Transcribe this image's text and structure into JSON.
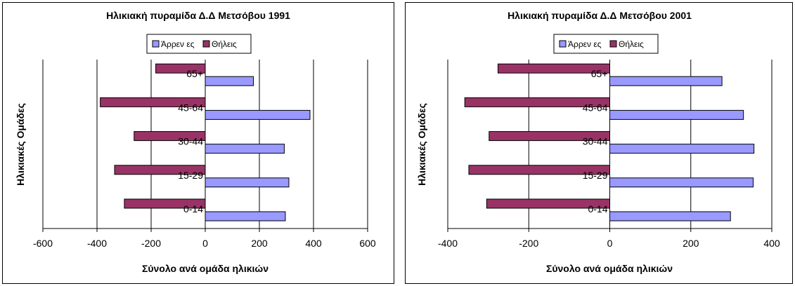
{
  "chart_data": [
    {
      "type": "bar",
      "orientation": "horizontal",
      "title": "Ηλικιακή πυραμίδα Δ.Δ Μετσόβου 1991",
      "xlabel": "Σύνολο ανά ομάδα ηλικιών",
      "ylabel": "Ηλικιακές Ομάδες",
      "categories": [
        "0-14",
        "15-29",
        "30-44",
        "45-64",
        "65+"
      ],
      "series": [
        {
          "name": "Άρρεν ες",
          "values": [
            296,
            309,
            292,
            387,
            178
          ]
        },
        {
          "name": "Θήλεις",
          "values": [
            -299,
            -335,
            -263,
            -388,
            -183
          ]
        }
      ],
      "xlim": [
        -600,
        600
      ],
      "xticks": [
        -600,
        -400,
        -200,
        0,
        200,
        400,
        600
      ],
      "xtick_labels": [
        "-600",
        "-400",
        "-200",
        "0",
        "200",
        "400",
        "600"
      ],
      "grid": "vertical major gridlines",
      "legend": "top-center",
      "colors": {
        "Άρρεν ες": "#9999ff",
        "Θήλεις": "#993366"
      }
    },
    {
      "type": "bar",
      "orientation": "horizontal",
      "title": "Ηλικιακή πυραμίδα Δ.Δ Μετσόβου 2001",
      "xlabel": "Σύνολο ανά ομάδα ηλικιών",
      "ylabel": "Ηλικιακές Ομάδες",
      "categories": [
        "0-14",
        "15-29",
        "30-44",
        "45-64",
        "65+"
      ],
      "series": [
        {
          "name": "Άρρεν ες",
          "values": [
            298,
            354,
            356,
            330,
            277
          ]
        },
        {
          "name": "Θήλεις",
          "values": [
            -304,
            -348,
            -298,
            -358,
            -276
          ]
        }
      ],
      "xlim": [
        -400,
        400
      ],
      "xticks": [
        -400,
        -200,
        0,
        200,
        400
      ],
      "xtick_labels": [
        "-400",
        "-200",
        "0",
        "200",
        "400"
      ],
      "grid": "vertical major gridlines",
      "legend": "top-center",
      "colors": {
        "Άρρεν ες": "#9999ff",
        "Θήλεις": "#993366"
      }
    }
  ]
}
